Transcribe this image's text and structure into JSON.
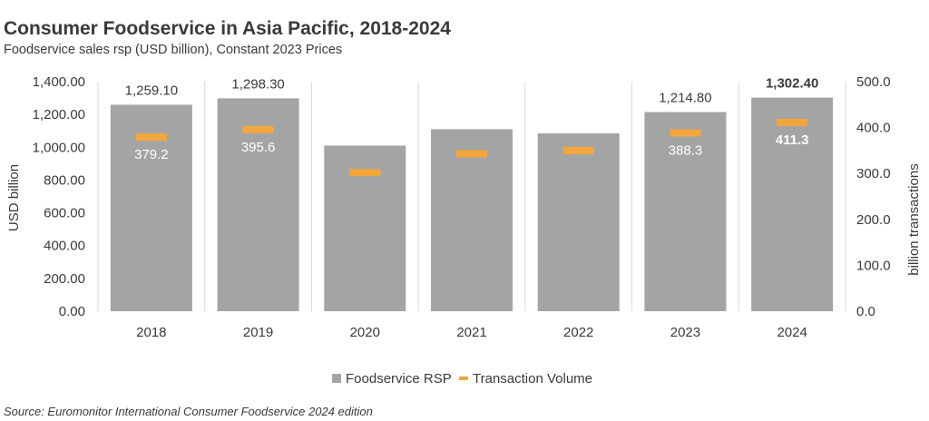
{
  "title": "Consumer Foodservice in Asia Pacific, 2018-2024",
  "subtitle": "Foodservice sales rsp (USD billion), Constant 2023 Prices",
  "source": "Source: Euromonitor International Consumer Foodservice 2024 edition",
  "chart_data": {
    "type": "bar",
    "categories": [
      "2018",
      "2019",
      "2020",
      "2021",
      "2022",
      "2023",
      "2024"
    ],
    "series": [
      {
        "name": "Foodservice RSP",
        "kind": "bar",
        "axis": "left",
        "color": "#a3a5a5",
        "values": [
          1259.1,
          1298.3,
          1010,
          1110,
          1085,
          1214.8,
          1302.4
        ],
        "labels": [
          "1,259.10",
          "1,298.30",
          "",
          "",
          "",
          "1,214.80",
          "1,302.40"
        ]
      },
      {
        "name": "Transaction Volume",
        "kind": "marker",
        "axis": "right",
        "color": "#f4a63c",
        "values": [
          379.2,
          395.6,
          302,
          343,
          350,
          388.3,
          411.3
        ],
        "labels": [
          "379.2",
          "395.6",
          "",
          "",
          "",
          "388.3",
          "411.3"
        ]
      }
    ],
    "bold_category": "2024",
    "ylabel": "USD billion",
    "y2label": "billion transactions",
    "ylim": [
      0,
      1400
    ],
    "y2lim": [
      0,
      500
    ],
    "yticks": [
      "0.00",
      "200.00",
      "400.00",
      "600.00",
      "800.00",
      "1,000.00",
      "1,200.00",
      "1,400.00"
    ],
    "y2ticks": [
      "0.0",
      "100.0",
      "200.0",
      "300.0",
      "400.0",
      "500.0"
    ],
    "legend": [
      "Foodservice RSP",
      "Transaction Volume"
    ],
    "legend_position": "bottom"
  }
}
